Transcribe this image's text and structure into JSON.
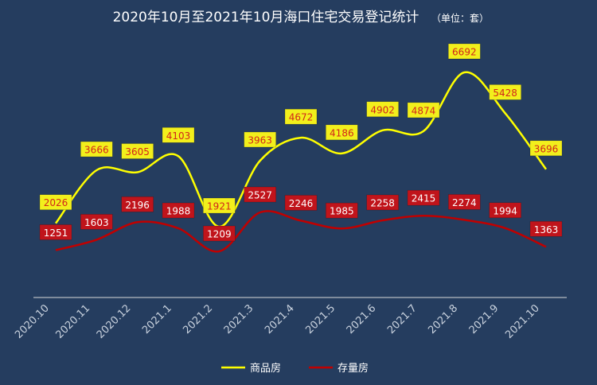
{
  "chart_data": {
    "type": "line",
    "title": "2020年10月至2021年10月海口住宅交易登记统计",
    "unit_note": "（单位：套）",
    "xlabel": "",
    "ylabel": "",
    "categories": [
      "2020.10",
      "2020.11",
      "2020.12",
      "2021.1",
      "2021.2",
      "2021.3",
      "2021.4",
      "2021.5",
      "2021.6",
      "2021.7",
      "2021.8",
      "2021.9",
      "2021.10"
    ],
    "series": [
      {
        "name": "商品房",
        "color": "#ffff00",
        "label_bg": "#f2ef1c",
        "values": [
          2026,
          3666,
          3605,
          4103,
          1921,
          3963,
          4672,
          4186,
          4902,
          4874,
          6692,
          5428,
          3696
        ]
      },
      {
        "name": "存量房",
        "color": "#c00000",
        "label_bg": "#c0141b",
        "values": [
          1251,
          1603,
          2196,
          1988,
          1209,
          2527,
          2246,
          1985,
          2258,
          2415,
          2274,
          1994,
          1363
        ]
      }
    ],
    "smooth": true,
    "grid": false,
    "legend_position": "bottom"
  }
}
